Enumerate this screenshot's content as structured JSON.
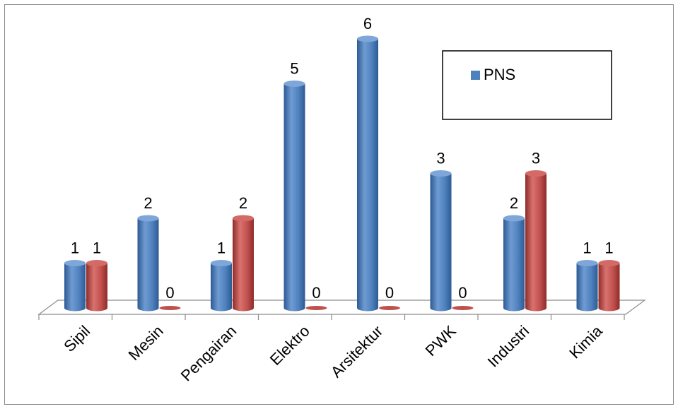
{
  "chart_data": {
    "type": "bar",
    "style": "3d-cylinder",
    "categories": [
      "Sipil",
      "Mesin",
      "Pengairan",
      "Elektro",
      "Arsitektur",
      "PWK",
      "Industri",
      "Kimia"
    ],
    "series": [
      {
        "name": "PNS",
        "color": "#4f81bd",
        "values": [
          1,
          2,
          1,
          5,
          6,
          3,
          2,
          1
        ]
      },
      {
        "name": "",
        "color": "#c0504d",
        "values": [
          1,
          0,
          2,
          0,
          0,
          0,
          3,
          1
        ]
      }
    ],
    "data_labels": true,
    "ylim": [
      0,
      6
    ],
    "grid": false,
    "legend": {
      "position": "top-right",
      "entries": [
        "PNS"
      ]
    },
    "title": "",
    "xlabel": "",
    "ylabel": ""
  }
}
